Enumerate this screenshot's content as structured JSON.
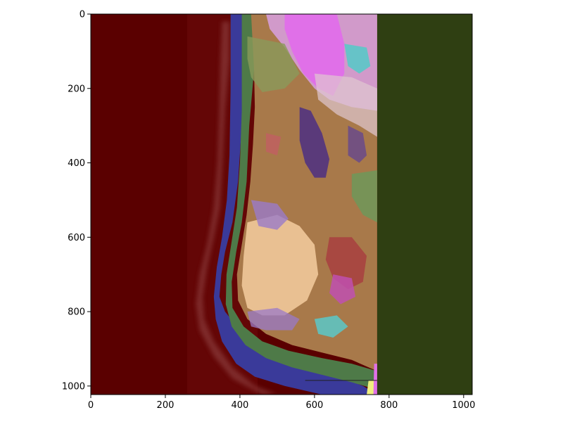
{
  "chart_data": {
    "type": "heatmap",
    "title": "",
    "xlabel": "",
    "ylabel": "",
    "xlim": [
      0,
      1023
    ],
    "ylim": [
      1023,
      0
    ],
    "x_ticks": [
      0,
      200,
      400,
      600,
      800,
      1000
    ],
    "y_ticks": [
      0,
      200,
      400,
      600,
      800,
      1000
    ],
    "y_inverted": true,
    "grid": false,
    "colors": {
      "ocean": "#5a0000",
      "ocean_glow": "#7a2a2a",
      "right_strip": "#2f3f12",
      "coast_blue": "#3a3a9a",
      "coast_green": "#4e7a48",
      "land_brown": "#a8794a",
      "land_pink": "#d8a0e0",
      "land_magenta": "#e070e8",
      "land_purple": "#5a3a7a",
      "land_tan": "#f0c89a",
      "land_olive": "#8a9a5a",
      "land_cyan": "#5ac8c8",
      "land_lavender": "#9a7ac8",
      "land_red": "#a84040"
    },
    "regions": [
      {
        "name": "ocean",
        "color": "ocean"
      },
      {
        "name": "coastal-zone",
        "color": "coast_blue"
      },
      {
        "name": "land-mosaic",
        "color": "land_brown"
      },
      {
        "name": "outside-extent",
        "color": "right_strip"
      }
    ]
  }
}
